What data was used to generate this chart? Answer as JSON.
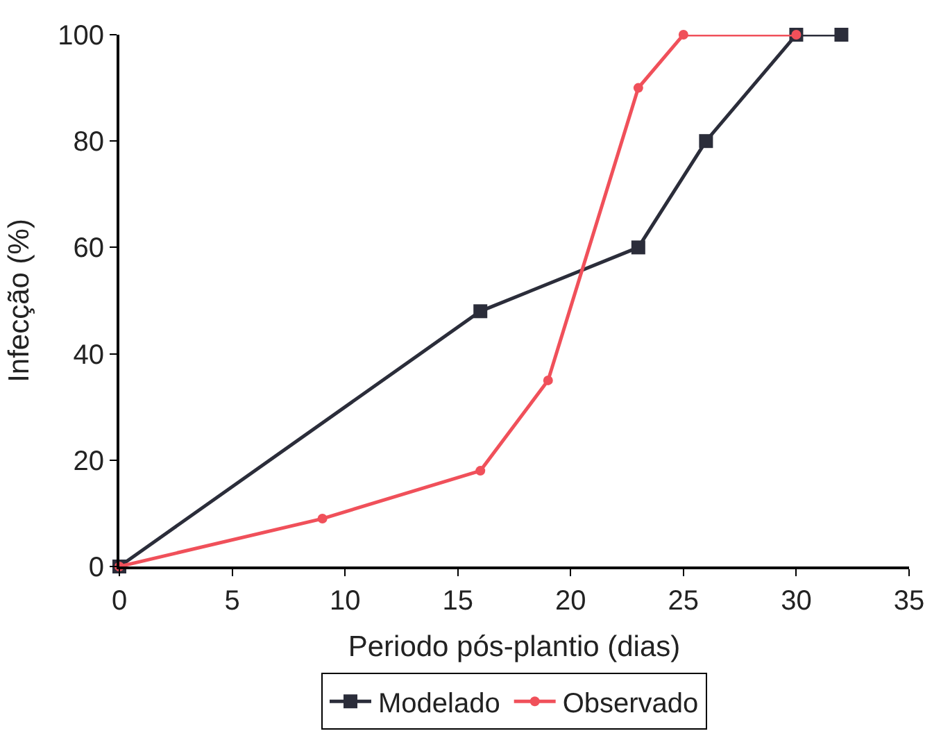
{
  "chart_data": {
    "type": "line",
    "xlabel": "Periodo pós-plantio (dias)",
    "ylabel": "Infecção (%)",
    "xlim": [
      0,
      35
    ],
    "xticks": [
      0,
      5,
      10,
      15,
      20,
      25,
      30,
      35
    ],
    "ylim": [
      0,
      100
    ],
    "yticks": [
      0,
      20,
      40,
      60,
      80,
      100
    ],
    "legend": "bottom",
    "series": [
      {
        "name": "Modelado",
        "color": "#2b2d3a",
        "marker": "square",
        "x": [
          0,
          16,
          23,
          26,
          30,
          32
        ],
        "values": [
          0,
          48,
          60,
          80,
          100,
          100
        ]
      },
      {
        "name": "Observado",
        "color": "#f0505a",
        "marker": "circle",
        "x": [
          0,
          9,
          16,
          19,
          23,
          25,
          30
        ],
        "values": [
          0,
          9,
          18,
          35,
          90,
          100,
          100
        ]
      }
    ]
  }
}
